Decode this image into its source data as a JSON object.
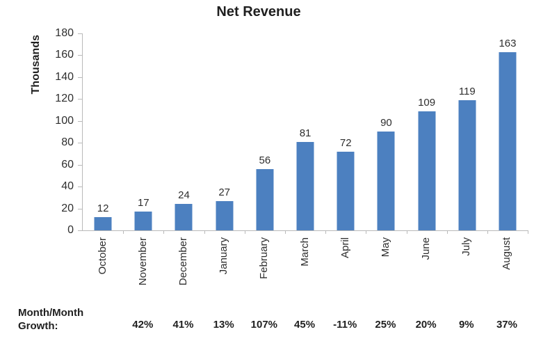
{
  "chart_data": {
    "type": "bar",
    "title": "Net Revenue",
    "y_axis_title": "Thousands",
    "categories": [
      "October",
      "November",
      "December",
      "January",
      "February",
      "March",
      "April",
      "May",
      "June",
      "July",
      "August"
    ],
    "values": [
      12,
      17,
      24,
      27,
      56,
      81,
      72,
      90,
      109,
      119,
      163
    ],
    "data_labels_visible": true,
    "y_ticks": [
      0,
      20,
      40,
      60,
      80,
      100,
      120,
      140,
      160,
      180
    ],
    "ylim": [
      0,
      180
    ],
    "xlabel": "",
    "ylabel": "Thousands",
    "grid": false,
    "legend": "none",
    "bar_color": "#4c80c0",
    "axis_color": "#b9b9b9",
    "text_color": "#2e2e2e",
    "growth_row": {
      "label_line1": "Month/Month",
      "label_line2": "Growth:",
      "values": [
        "",
        "42%",
        "41%",
        "13%",
        "107%",
        "45%",
        "-11%",
        "25%",
        "20%",
        "9%",
        "37%"
      ]
    }
  }
}
